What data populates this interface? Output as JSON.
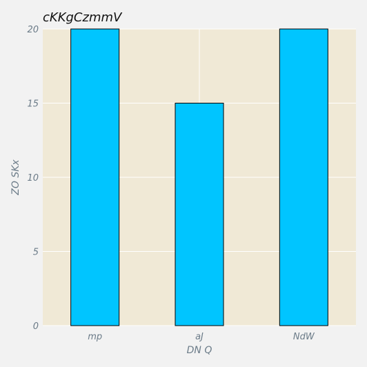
{
  "chart_data": {
    "type": "bar",
    "title": "cKKgCzmmV",
    "xlabel": "DN Q",
    "ylabel": "ZO SKx",
    "categories": [
      "mp",
      "aJ",
      "NdW"
    ],
    "values": [
      20,
      15,
      20
    ],
    "ylim": [
      0,
      20
    ],
    "yticks": [
      "0",
      "5",
      "10",
      "15",
      "20"
    ],
    "grid": true,
    "colors": {
      "bar": "#00c5ff",
      "bar_edge": "#000000",
      "plot_bg": "#f0e9d6",
      "figure_bg": "#f2f2f2",
      "grid": "#ffffff"
    }
  }
}
